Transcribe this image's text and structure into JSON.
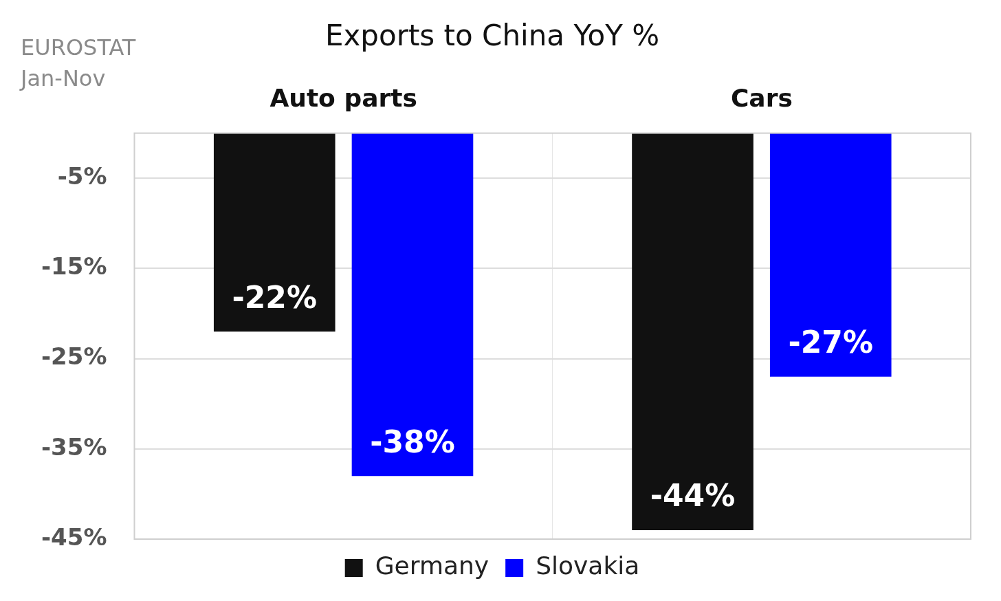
{
  "chart_data": {
    "type": "bar",
    "title": "Exports to China YoY %",
    "annotations": [
      "EUROSTAT",
      "Jan-Nov"
    ],
    "categories": [
      "Auto parts",
      "Cars"
    ],
    "series": [
      {
        "name": "Germany",
        "color": "#111111",
        "values": [
          -22,
          -44
        ],
        "value_labels": [
          "-22%",
          "-44%"
        ]
      },
      {
        "name": "Slovakia",
        "color": "#0000ff",
        "values": [
          -38,
          -27
        ],
        "value_labels": [
          "-38%",
          "-27%"
        ]
      }
    ],
    "ylim": [
      -45,
      0
    ],
    "yticks": [
      {
        "value": -5,
        "label": "-5%"
      },
      {
        "value": -15,
        "label": "-15%"
      },
      {
        "value": -25,
        "label": "-25%"
      },
      {
        "value": -35,
        "label": "-35%"
      },
      {
        "value": -45,
        "label": "-45%"
      }
    ],
    "grid": true,
    "legend": "bottom",
    "data_labels": true
  }
}
